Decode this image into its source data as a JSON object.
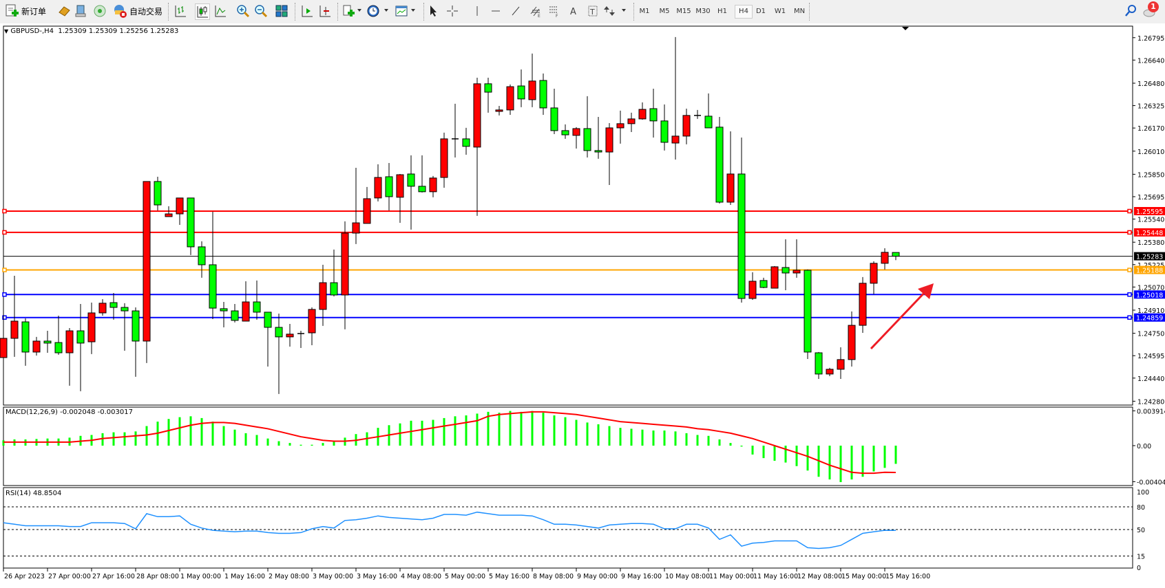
{
  "toolbar": {
    "new_order_label": "新订单",
    "auto_trading_label": "自动交易",
    "timeframes": [
      "M1",
      "M5",
      "M15",
      "M30",
      "H1",
      "H4",
      "D1",
      "W1",
      "MN"
    ],
    "active_timeframe": "H4",
    "notification_count": "1"
  },
  "chart": {
    "symbol_title": "GBPUSD-,H4",
    "ohlc_text": "1.25309 1.25309 1.25256 1.25283",
    "macd_title": "MACD(12,26,9) -0.002048 -0.003017",
    "rsi_title": "RSI(14) 48.8504",
    "colors": {
      "up": "#ff0000",
      "down": "#00ff00",
      "macd_hist": "#00ff00",
      "macd_signal": "#ff0000",
      "rsi": "#1e90ff",
      "arrow": "#ee1c25"
    },
    "current_price": "1.25283",
    "price_ticks": [
      "1.26795",
      "1.26640",
      "1.26480",
      "1.26325",
      "1.26170",
      "1.26010",
      "1.25850",
      "1.25695",
      "1.25540",
      "1.25380",
      "1.25225",
      "1.25070",
      "1.24910",
      "1.24750",
      "1.24595",
      "1.24440",
      "1.24280"
    ],
    "hlines": [
      {
        "price": "1.25595",
        "color": "#ff0000"
      },
      {
        "price": "1.25448",
        "color": "#ff0000"
      },
      {
        "price": "1.25188",
        "color": "#ffa500"
      },
      {
        "price": "1.25018",
        "color": "#0000ff"
      },
      {
        "price": "1.24859",
        "color": "#0000ff"
      }
    ],
    "macd_ticks": [
      "0.003914",
      "0.00",
      "-0.004049"
    ],
    "rsi_ticks": [
      "100",
      "80",
      "50",
      "15",
      "0"
    ],
    "rsi_levels": [
      80,
      50,
      15
    ],
    "time_labels": [
      {
        "bar": 0,
        "text": "26 Apr 2023"
      },
      {
        "bar": 4,
        "text": "27 Apr 00:00"
      },
      {
        "bar": 8,
        "text": "27 Apr 16:00"
      },
      {
        "bar": 12,
        "text": "28 Apr 08:00"
      },
      {
        "bar": 16,
        "text": "1 May 00:00"
      },
      {
        "bar": 20,
        "text": "1 May 16:00"
      },
      {
        "bar": 24,
        "text": "2 May 08:00"
      },
      {
        "bar": 28,
        "text": "3 May 00:00"
      },
      {
        "bar": 32,
        "text": "3 May 16:00"
      },
      {
        "bar": 36,
        "text": "4 May 08:00"
      },
      {
        "bar": 40,
        "text": "5 May 00:00"
      },
      {
        "bar": 44,
        "text": "5 May 16:00"
      },
      {
        "bar": 48,
        "text": "8 May 08:00"
      },
      {
        "bar": 52,
        "text": "9 May 00:00"
      },
      {
        "bar": 56,
        "text": "9 May 16:00"
      },
      {
        "bar": 60,
        "text": "10 May 08:00"
      },
      {
        "bar": 64,
        "text": "11 May 00:00"
      },
      {
        "bar": 68,
        "text": "11 May 16:00"
      },
      {
        "bar": 72,
        "text": "12 May 08:00"
      },
      {
        "bar": 76,
        "text": "15 May 00:00"
      },
      {
        "bar": 80,
        "text": "15 May 16:00"
      }
    ]
  },
  "chart_data": {
    "type": "candlestick",
    "ohlc": [
      [
        1.24582,
        1.24901,
        1.24472,
        1.24715
      ],
      [
        1.24715,
        1.25148,
        1.24587,
        1.24834
      ],
      [
        1.24829,
        1.24853,
        1.24525,
        1.2462
      ],
      [
        1.2462,
        1.24725,
        1.24596,
        1.24696
      ],
      [
        1.24696,
        1.24767,
        1.24615,
        1.24682
      ],
      [
        1.24686,
        1.24872,
        1.24601,
        1.24615
      ],
      [
        1.24615,
        1.24786,
        1.24387,
        1.24767
      ],
      [
        1.24767,
        1.24953,
        1.24349,
        1.24682
      ],
      [
        1.24691,
        1.24962,
        1.24606,
        1.24891
      ],
      [
        1.24891,
        1.24986,
        1.24872,
        1.24958
      ],
      [
        1.24962,
        1.25029,
        1.24844,
        1.24929
      ],
      [
        1.24929,
        1.24958,
        1.24629,
        1.24905
      ],
      [
        1.24905,
        1.24929,
        1.24449,
        1.24696
      ],
      [
        1.24696,
        1.258,
        1.24544,
        1.258
      ],
      [
        1.258,
        1.25833,
        1.256,
        1.25638
      ],
      [
        1.25557,
        1.25629,
        1.25557,
        1.25576
      ],
      [
        1.25576,
        1.25686,
        1.255,
        1.25686
      ],
      [
        1.25686,
        1.25686,
        1.25291,
        1.25348
      ],
      [
        1.25348,
        1.25386,
        1.25134,
        1.25224
      ],
      [
        1.25224,
        1.25591,
        1.24848,
        1.24924
      ],
      [
        1.2492,
        1.24967,
        1.24791,
        1.24905
      ],
      [
        1.24905,
        1.24953,
        1.24825,
        1.24839
      ],
      [
        1.24834,
        1.2511,
        1.24834,
        1.24967
      ],
      [
        1.24967,
        1.25115,
        1.24844,
        1.24896
      ],
      [
        1.24896,
        1.24896,
        1.2452,
        1.24791
      ],
      [
        1.24791,
        1.24886,
        1.2433,
        1.24725
      ],
      [
        1.24725,
        1.24815,
        1.24658,
        1.24744
      ],
      [
        1.24744,
        1.24767,
        1.24648,
        1.24748
      ],
      [
        1.24753,
        1.24929,
        1.24667,
        1.24915
      ],
      [
        1.24915,
        1.25224,
        1.24801,
        1.251
      ],
      [
        1.251,
        1.25329,
        1.25005,
        1.25015
      ],
      [
        1.25015,
        1.25524,
        1.24777,
        1.25443
      ],
      [
        1.25443,
        1.25895,
        1.25367,
        1.25514
      ],
      [
        1.2551,
        1.25762,
        1.2551,
        1.25681
      ],
      [
        1.25686,
        1.25919,
        1.25662,
        1.25828
      ],
      [
        1.25833,
        1.25928,
        1.256,
        1.25695
      ],
      [
        1.25691,
        1.25852,
        1.25514,
        1.25847
      ],
      [
        1.25852,
        1.25981,
        1.25467,
        1.25767
      ],
      [
        1.25767,
        1.25981,
        1.25724,
        1.25729
      ],
      [
        1.25729,
        1.25838,
        1.25691,
        1.25824
      ],
      [
        1.25828,
        1.26138,
        1.25757,
        1.26095
      ],
      [
        1.26095,
        1.26338,
        1.25966,
        1.26095
      ],
      [
        1.26095,
        1.26171,
        1.25985,
        1.26043
      ],
      [
        1.26038,
        1.26518,
        1.25562,
        1.26476
      ],
      [
        1.26476,
        1.26518,
        1.26276,
        1.26418
      ],
      [
        1.26285,
        1.26323,
        1.26257,
        1.26295
      ],
      [
        1.26295,
        1.26471,
        1.26261,
        1.26456
      ],
      [
        1.26461,
        1.26575,
        1.26314,
        1.26371
      ],
      [
        1.26366,
        1.26685,
        1.26314,
        1.26495
      ],
      [
        1.26499,
        1.26547,
        1.26261,
        1.26309
      ],
      [
        1.26309,
        1.26442,
        1.26128,
        1.26152
      ],
      [
        1.26152,
        1.26195,
        1.26095,
        1.26123
      ],
      [
        1.26119,
        1.26176,
        1.26028,
        1.26166
      ],
      [
        1.26166,
        1.2639,
        1.25966,
        1.26014
      ],
      [
        1.26014,
        1.26247,
        1.25957,
        1.26004
      ],
      [
        1.26004,
        1.26204,
        1.25776,
        1.26171
      ],
      [
        1.26171,
        1.2629,
        1.26062,
        1.262
      ],
      [
        1.262,
        1.26276,
        1.26142,
        1.26233
      ],
      [
        1.26233,
        1.26347,
        1.26228,
        1.26299
      ],
      [
        1.26304,
        1.26442,
        1.26104,
        1.26219
      ],
      [
        1.26219,
        1.26333,
        1.26014,
        1.26071
      ],
      [
        1.26066,
        1.26799,
        1.25952,
        1.26114
      ],
      [
        1.26114,
        1.26304,
        1.26057,
        1.26257
      ],
      [
        1.26257,
        1.26295,
        1.26233,
        1.26252
      ],
      [
        1.26252,
        1.26409,
        1.26171,
        1.26171
      ],
      [
        1.26176,
        1.26247,
        1.25648,
        1.25657
      ],
      [
        1.25657,
        1.26147,
        1.25638,
        1.25852
      ],
      [
        1.25852,
        1.26104,
        1.24962,
        1.24991
      ],
      [
        1.24991,
        1.25172,
        1.24981,
        1.2511
      ],
      [
        1.25115,
        1.25134,
        1.25062,
        1.25067
      ],
      [
        1.25062,
        1.25215,
        1.25062,
        1.2521
      ],
      [
        1.25205,
        1.254,
        1.25048,
        1.25167
      ],
      [
        1.25167,
        1.254,
        1.25134,
        1.25186
      ],
      [
        1.25186,
        1.25191,
        1.24572,
        1.2462
      ],
      [
        1.24615,
        1.2462,
        1.24434,
        1.24468
      ],
      [
        1.24468,
        1.24511,
        1.24453,
        1.24501
      ],
      [
        1.24501,
        1.24653,
        1.24434,
        1.24568
      ],
      [
        1.24568,
        1.24901,
        1.2452,
        1.24805
      ],
      [
        1.24805,
        1.25139,
        1.24753,
        1.25096
      ],
      [
        1.25096,
        1.25248,
        1.2502,
        1.25234
      ],
      [
        1.25234,
        1.25338,
        1.25191,
        1.2531
      ],
      [
        1.25309,
        1.25309,
        1.25256,
        1.25283
      ]
    ],
    "macd_histogram": [
      0.0006,
      0.0007,
      0.0007,
      0.00075,
      0.0008,
      0.0008,
      0.0009,
      0.0011,
      0.0012,
      0.0014,
      0.0015,
      0.0015,
      0.0016,
      0.0022,
      0.0027,
      0.003,
      0.0032,
      0.0033,
      0.0031,
      0.0027,
      0.0022,
      0.0018,
      0.0014,
      0.0012,
      0.0008,
      0.0005,
      0.0003,
      0.0001,
      0.0001,
      0.0003,
      0.0005,
      0.0009,
      0.0013,
      0.0015,
      0.002,
      0.0023,
      0.0025,
      0.0028,
      0.0028,
      0.0029,
      0.0031,
      0.0033,
      0.0034,
      0.0036,
      0.0038,
      0.0037,
      0.0039,
      0.0038,
      0.0039,
      0.0037,
      0.0034,
      0.0032,
      0.0029,
      0.0026,
      0.0024,
      0.0022,
      0.002,
      0.0019,
      0.0018,
      0.0017,
      0.0017,
      0.0016,
      0.0014,
      0.0012,
      0.0011,
      0.0007,
      0.0003,
      -0.0001,
      -0.001,
      -0.0014,
      -0.0017,
      -0.0019,
      -0.0023,
      -0.0028,
      -0.0035,
      -0.0038,
      -0.0041,
      -0.0038,
      -0.0035,
      -0.0029,
      -0.0025,
      -0.002048
    ],
    "macd_signal": [
      0.0004,
      0.0004,
      0.0004,
      0.0004,
      0.0004,
      0.0004,
      0.0004,
      0.0005,
      0.0006,
      0.0008,
      0.0009,
      0.001,
      0.0011,
      0.0012,
      0.0014,
      0.0017,
      0.002,
      0.0023,
      0.0025,
      0.0026,
      0.0026,
      0.0025,
      0.0023,
      0.0021,
      0.0019,
      0.0016,
      0.0013,
      0.001,
      0.0008,
      0.0006,
      0.0005,
      0.0005,
      0.0006,
      0.0008,
      0.001,
      0.0012,
      0.0014,
      0.0016,
      0.0018,
      0.002,
      0.0022,
      0.0024,
      0.0026,
      0.0028,
      0.0033,
      0.0035,
      0.0036,
      0.0037,
      0.0038,
      0.0038,
      0.0037,
      0.0036,
      0.0035,
      0.0033,
      0.0031,
      0.0029,
      0.0027,
      0.0026,
      0.0025,
      0.0024,
      0.0023,
      0.0022,
      0.0021,
      0.0019,
      0.0018,
      0.0016,
      0.0014,
      0.0011,
      0.0008,
      0.0004,
      0.0,
      -0.0004,
      -0.0008,
      -0.0012,
      -0.0017,
      -0.0022,
      -0.0026,
      -0.003,
      -0.0031,
      -0.0031,
      -0.003,
      -0.003017
    ],
    "rsi": [
      59,
      57,
      55,
      55,
      55,
      55,
      54,
      54,
      59,
      59,
      59,
      58,
      51,
      71,
      67,
      67,
      68,
      57,
      52,
      49,
      48,
      47,
      48,
      48,
      46,
      45,
      45,
      46,
      51,
      54,
      52,
      62,
      63,
      65,
      68,
      66,
      65,
      64,
      63,
      65,
      70,
      70,
      69,
      73,
      71,
      69,
      69,
      69,
      68,
      63,
      57,
      57,
      56,
      54,
      52,
      56,
      57,
      58,
      58,
      57,
      51,
      51,
      57,
      57,
      52,
      37,
      43,
      28,
      32,
      33,
      35,
      35,
      35,
      26,
      25,
      26,
      29,
      37,
      45,
      47,
      49,
      48.8504
    ],
    "ylim": [
      1.2428,
      1.26795
    ],
    "macd_ylim": [
      -0.004049,
      0.003914
    ],
    "rsi_ylim": [
      0,
      100
    ]
  }
}
